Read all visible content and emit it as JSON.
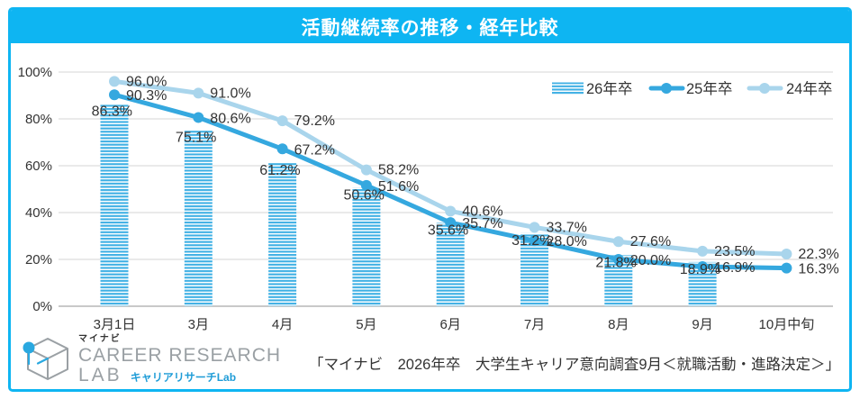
{
  "header": {
    "title": "活動継続率の推移・経年比較"
  },
  "chart_data": {
    "type": "combo",
    "title": "活動継続率の推移・経年比較",
    "categories": [
      "3月1日",
      "3月",
      "4月",
      "5月",
      "6月",
      "7月",
      "8月",
      "9月",
      "10月中旬"
    ],
    "series": [
      {
        "name": "26年卒",
        "type": "bar",
        "pattern": "horizontal-stripes",
        "color": "#3fb0e4",
        "values": [
          86.3,
          75.1,
          61.2,
          50.6,
          35.6,
          31.2,
          21.8,
          18.9,
          null
        ]
      },
      {
        "name": "25年卒",
        "type": "line",
        "color": "#35a8df",
        "values": [
          90.3,
          80.6,
          67.2,
          51.6,
          35.7,
          28.0,
          20.0,
          16.9,
          16.3
        ]
      },
      {
        "name": "24年卒",
        "type": "line",
        "color": "#a9d5ec",
        "values": [
          96.0,
          91.0,
          79.2,
          58.2,
          40.6,
          33.7,
          27.6,
          23.5,
          22.3
        ]
      }
    ],
    "ylim": [
      0,
      100
    ],
    "ytick_values": [
      0,
      20,
      40,
      60,
      80,
      100
    ],
    "ytick_labels": [
      "0%",
      "20%",
      "40%",
      "60%",
      "80%",
      "100%"
    ],
    "grid": true,
    "legend_position": "top-right",
    "value_label_format": "{v}%",
    "highlight": {
      "series_index": 0,
      "point_index": 7,
      "color": "#e60012"
    }
  },
  "footer": {
    "logo": {
      "brand": "マイナビ",
      "line1": "CAREER RESEARCH",
      "line2": "LAB",
      "sub": "キャリアリサーチLab"
    },
    "caption": "「マイナビ　2026年卒　大学生キャリア意向調査9月＜就職活動・進路決定＞」"
  },
  "colors": {
    "accent": "#0eb5f2",
    "text": "#333333",
    "grid": "#dedede",
    "axis": "#c9c9c9",
    "red": "#e60012",
    "logo-gray": "#9aa0a4",
    "logo-blue": "#1e9cd7"
  }
}
